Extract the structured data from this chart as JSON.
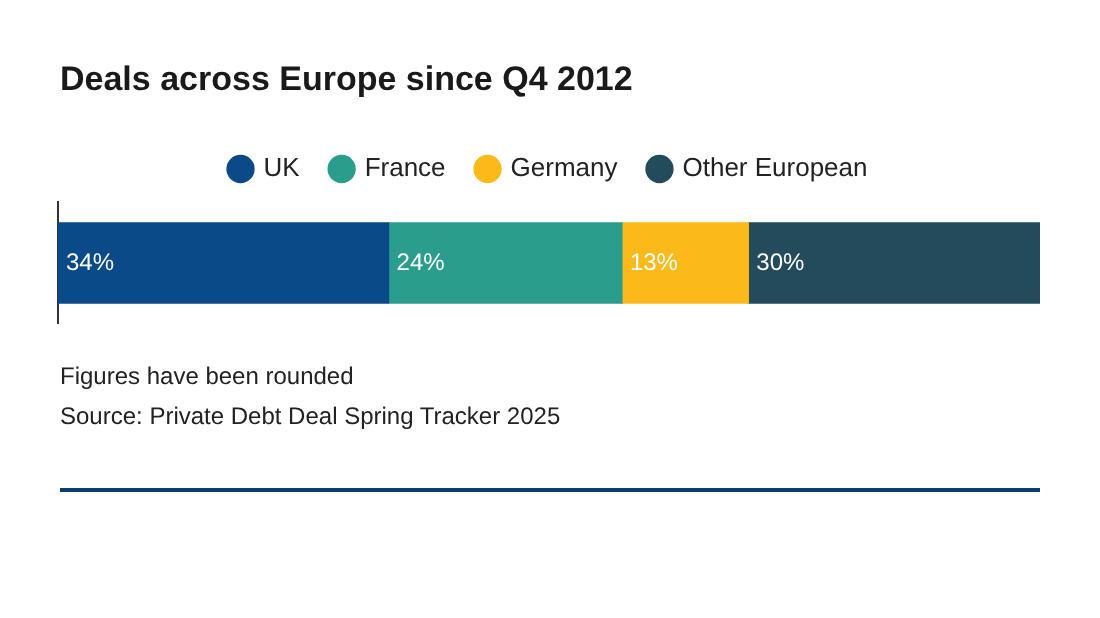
{
  "chart_data": {
    "type": "bar",
    "orientation": "horizontal",
    "stacked": true,
    "title": "Deals across Europe since Q4 2012",
    "categories": [
      null
    ],
    "xlim": [
      0,
      101
    ],
    "tick_labels": false,
    "grid": false,
    "legend": "top",
    "series": [
      {
        "name": "UK",
        "color": "#0b4a89",
        "values": [
          34
        ],
        "value_labels": [
          "34%"
        ]
      },
      {
        "name": "France",
        "color": "#2a9d8c",
        "values": [
          24
        ],
        "value_labels": [
          "24%"
        ]
      },
      {
        "name": "Germany",
        "color": "#fbb91a",
        "values": [
          13
        ],
        "value_labels": [
          "13%"
        ]
      },
      {
        "name": "Other European",
        "color": "#234b5b",
        "values": [
          30
        ],
        "value_labels": [
          "30%"
        ]
      }
    ],
    "annotations": [
      "Figures have been rounded",
      "Source: Private Debt Deal Spring Tracker 2025"
    ]
  }
}
